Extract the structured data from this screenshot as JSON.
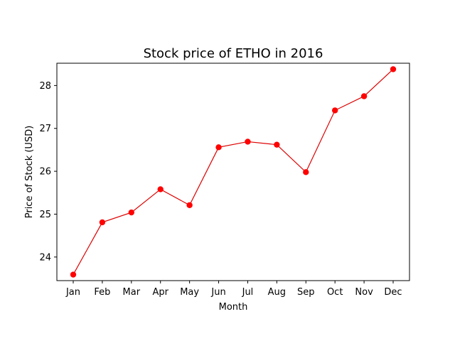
{
  "chart_data": {
    "type": "line",
    "title": "Stock price of ETHO in 2016",
    "xlabel": "Month",
    "ylabel": "Price of Stock (USD)",
    "categories": [
      "Jan",
      "Feb",
      "Mar",
      "Apr",
      "May",
      "Jun",
      "Jul",
      "Aug",
      "Sep",
      "Oct",
      "Nov",
      "Dec"
    ],
    "series": [
      {
        "values": [
          23.59,
          24.81,
          25.04,
          25.58,
          25.21,
          26.56,
          26.69,
          26.62,
          25.98,
          27.42,
          27.75,
          28.38
        ],
        "color": "#ff0000",
        "line_color": "#dd0000"
      }
    ],
    "yticks": [
      24,
      25,
      26,
      27,
      28
    ],
    "ylim": [
      23.45,
      28.52
    ],
    "grid": false,
    "legend": "none"
  }
}
